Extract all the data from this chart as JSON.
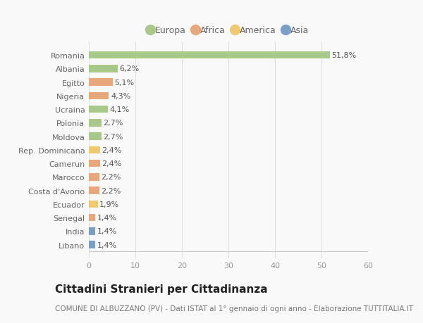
{
  "categories": [
    "Libano",
    "India",
    "Senegal",
    "Ecuador",
    "Costa d'Avorio",
    "Marocco",
    "Camerun",
    "Rep. Dominicana",
    "Moldova",
    "Polonia",
    "Ucraina",
    "Nigeria",
    "Egitto",
    "Albania",
    "Romania"
  ],
  "values": [
    1.4,
    1.4,
    1.4,
    1.9,
    2.2,
    2.2,
    2.4,
    2.4,
    2.7,
    2.7,
    4.1,
    4.3,
    5.1,
    6.2,
    51.8
  ],
  "labels": [
    "1,4%",
    "1,4%",
    "1,4%",
    "1,9%",
    "2,2%",
    "2,2%",
    "2,4%",
    "2,4%",
    "2,7%",
    "2,7%",
    "4,1%",
    "4,3%",
    "5,1%",
    "6,2%",
    "51,8%"
  ],
  "colors": [
    "#7b9fc7",
    "#7b9fc7",
    "#e8a87c",
    "#f0c96e",
    "#e8a87c",
    "#e8a87c",
    "#e8a87c",
    "#f0c96e",
    "#a8c98a",
    "#a8c98a",
    "#a8c98a",
    "#e8a87c",
    "#e8a87c",
    "#a8c98a",
    "#a8c98a"
  ],
  "legend_labels": [
    "Europa",
    "Africa",
    "America",
    "Asia"
  ],
  "legend_colors": [
    "#a8c98a",
    "#e8a87c",
    "#f0c96e",
    "#7b9fc7"
  ],
  "title": "Cittadini Stranieri per Cittadinanza",
  "subtitle": "COMUNE DI ALBUZZANO (PV) - Dati ISTAT al 1° gennaio di ogni anno - Elaborazione TUTTITALIA.IT",
  "xlim": [
    0,
    60
  ],
  "xticks": [
    0,
    10,
    20,
    30,
    40,
    50,
    60
  ],
  "background_color": "#f9f9f9",
  "grid_color": "#e0e0e0",
  "bar_height": 0.55,
  "label_fontsize": 8,
  "ytick_fontsize": 8,
  "xtick_fontsize": 8,
  "title_fontsize": 11,
  "subtitle_fontsize": 7.5,
  "legend_fontsize": 9
}
